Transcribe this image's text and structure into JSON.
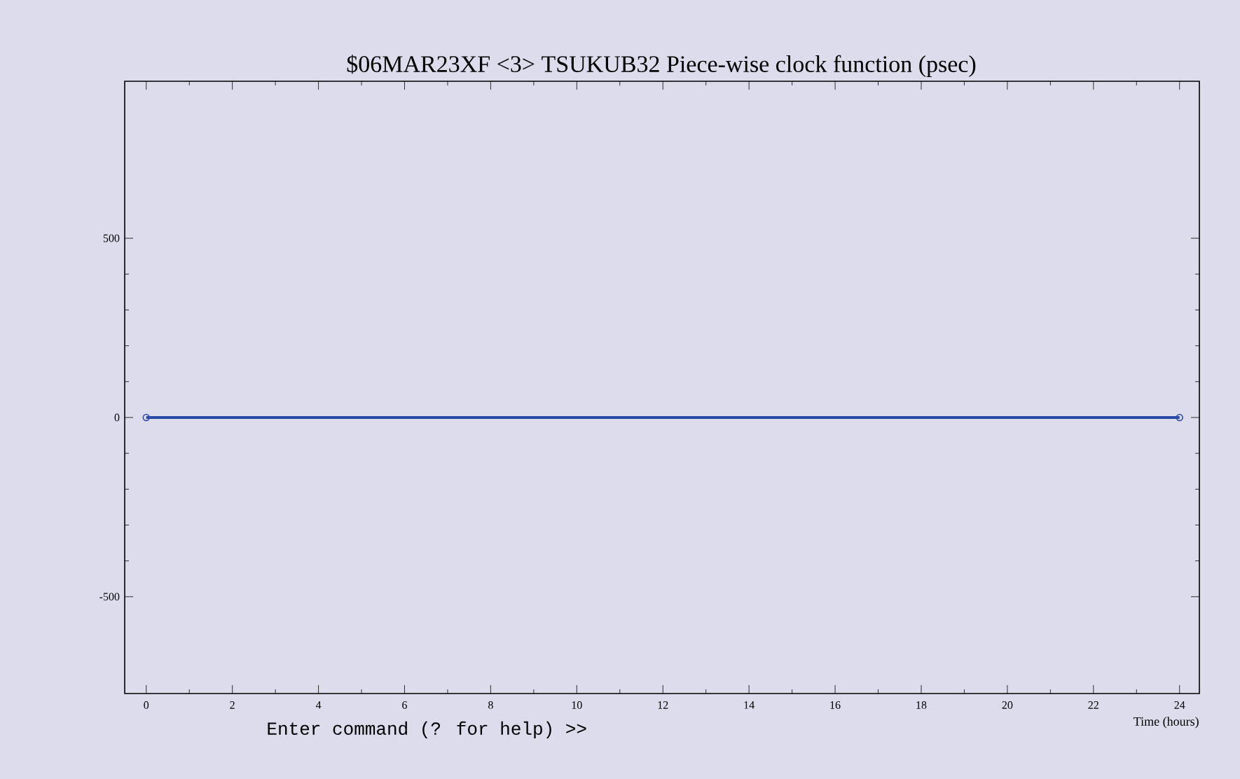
{
  "chart_data": {
    "type": "line",
    "title": "$06MAR23XF <3>  TSUKUB32  Piece-wise clock function (psec)",
    "xlabel": "Time (hours)",
    "annotations": [
      "Enter command (? for help) >>"
    ],
    "x": [
      0,
      24
    ],
    "series": [
      {
        "color": "#2a4aa8",
        "values": [
          0,
          0
        ]
      }
    ],
    "xlim": [
      -0.5,
      24.46
    ],
    "ylim": [
      -770,
      938
    ],
    "xticks": [
      0,
      2,
      4,
      6,
      8,
      10,
      12,
      14,
      16,
      18,
      20,
      22,
      24
    ],
    "yticks": [
      -500,
      0,
      500
    ],
    "marker": "circle",
    "line_style": "solid",
    "grid": false
  }
}
